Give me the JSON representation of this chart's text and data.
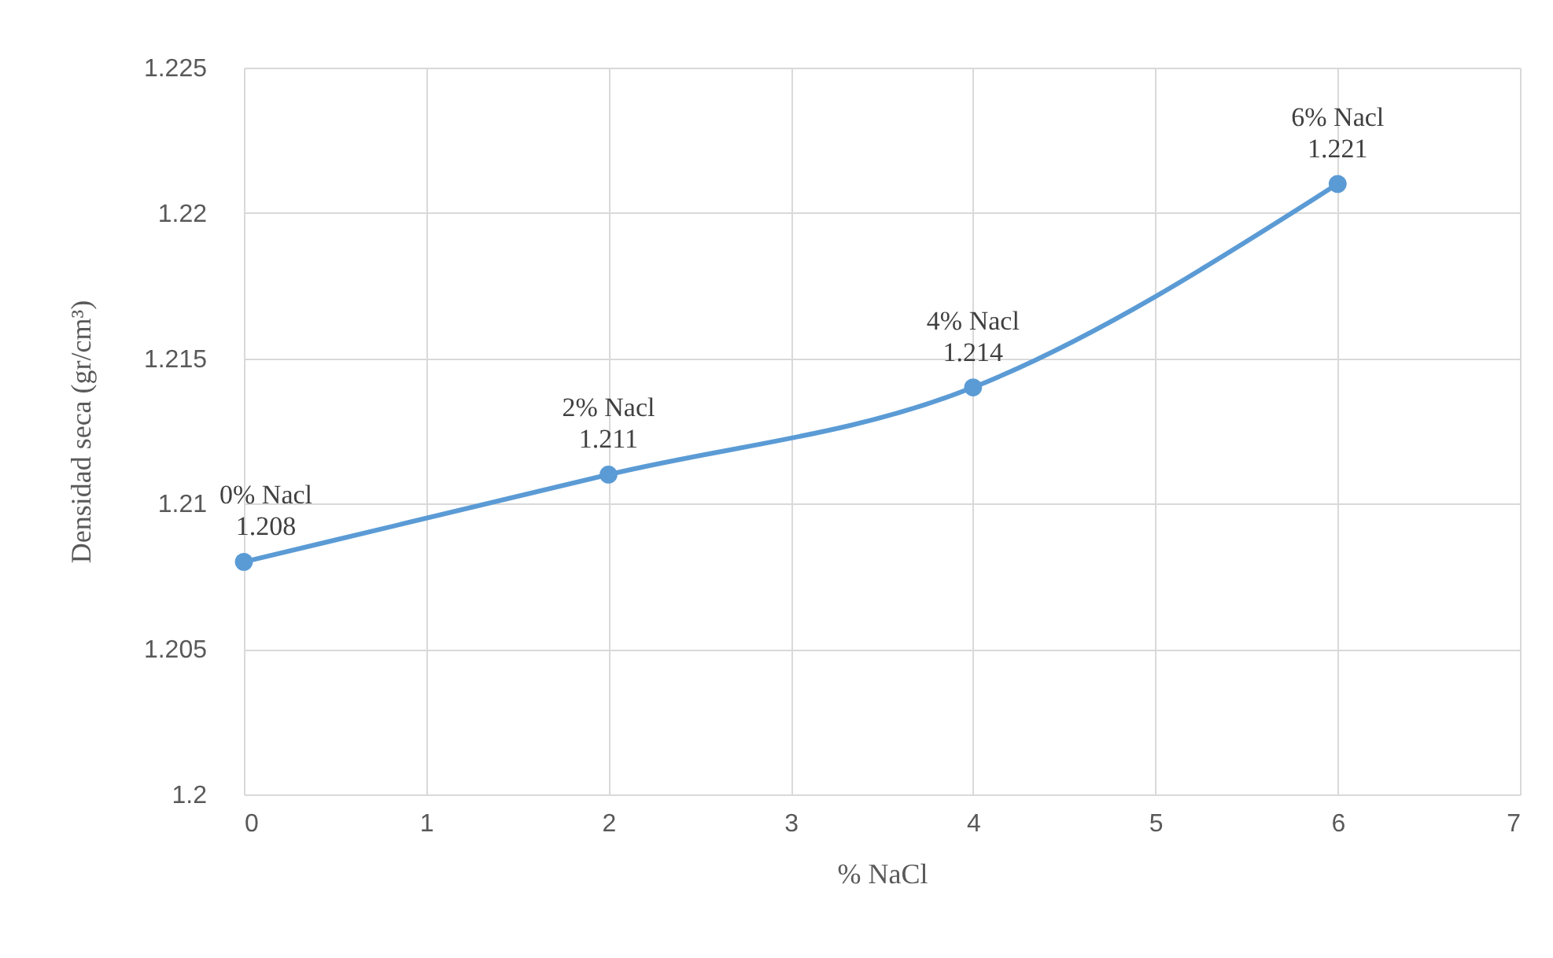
{
  "chart_data": {
    "type": "line",
    "xlabel": "% NaCl",
    "ylabel": "Densidad seca (gr/cm³)",
    "x": [
      0,
      2,
      4,
      6
    ],
    "series": [
      {
        "color": "#5b9bd5",
        "values": [
          1.208,
          1.211,
          1.214,
          1.221
        ]
      }
    ],
    "xlim": [
      0,
      7
    ],
    "xticks": [
      0,
      1,
      2,
      3,
      4,
      5,
      6,
      7
    ],
    "ylim": [
      1.2,
      1.225
    ],
    "yticks": [
      1.2,
      1.205,
      1.21,
      1.215,
      1.22,
      1.225
    ],
    "grid": true,
    "marker": "circle",
    "line_style": "solid",
    "data_labels": true,
    "annotations": [
      {
        "text": "0% Nacl",
        "x": 0,
        "y": 1.208
      },
      {
        "text": "2% Nacl",
        "x": 2,
        "y": 1.211
      },
      {
        "text": "4% Nacl",
        "x": 4,
        "y": 1.214
      },
      {
        "text": "6% Nacl",
        "x": 6,
        "y": 1.221
      }
    ]
  }
}
